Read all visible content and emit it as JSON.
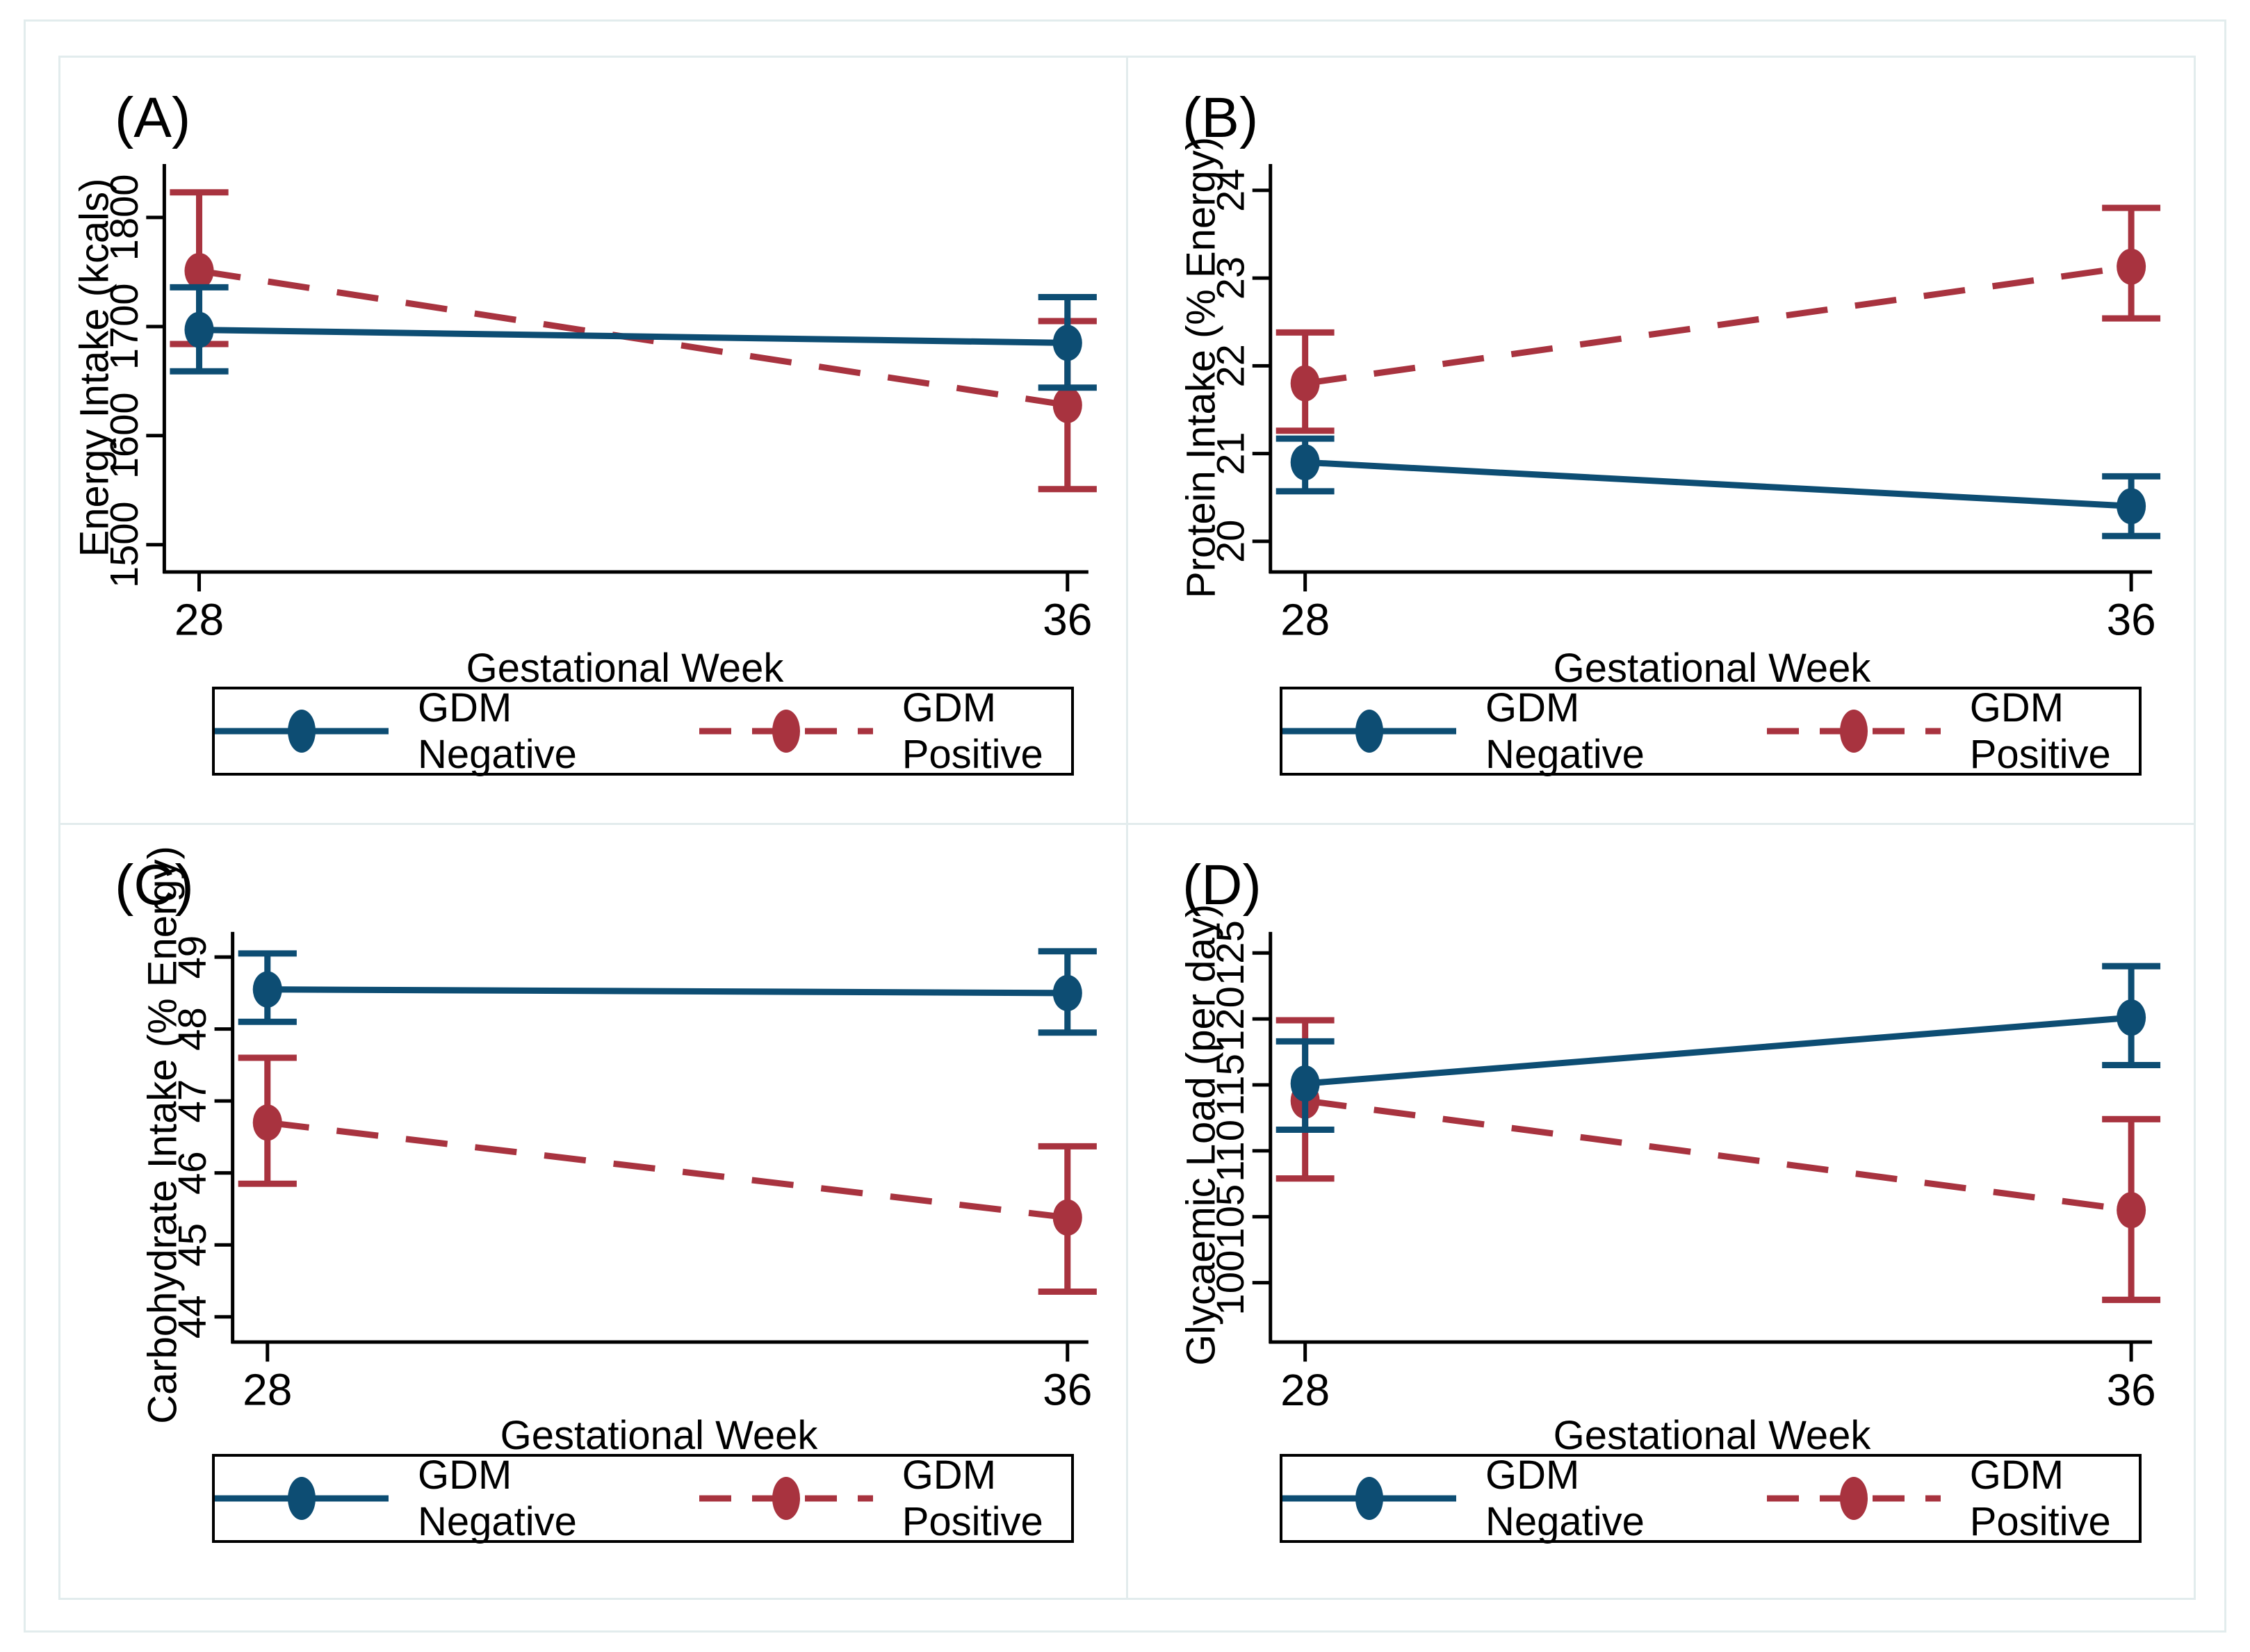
{
  "figure": {
    "frame_color": "#e2eced",
    "axis_color": "#000000",
    "background": "#ffffff"
  },
  "colors": {
    "negative": "#0d4d73",
    "positive": "#a8333f"
  },
  "legend": {
    "negative_label": "GDM Negative",
    "positive_label": "GDM Positive"
  },
  "chart_data": [
    {
      "type": "line",
      "panel": "(A)",
      "ylabel": "Energy Intake (kcals)",
      "xlabel": "Gestational Week",
      "x": [
        28,
        36
      ],
      "yticks": [
        1500,
        1600,
        1700,
        1800
      ],
      "ylim": [
        1475,
        1849
      ],
      "grid": false,
      "legend_position": "below",
      "series": [
        {
          "name": "GDM Negative",
          "key": "negative",
          "style": "solid",
          "values": [
            1697,
            1685
          ],
          "ci_low": [
            1659,
            1644
          ],
          "ci_high": [
            1736,
            1727
          ]
        },
        {
          "name": "GDM Positive",
          "key": "positive",
          "style": "dashed",
          "values": [
            1751,
            1628
          ],
          "ci_low": [
            1684,
            1551
          ],
          "ci_high": [
            1823,
            1705
          ]
        }
      ]
    },
    {
      "type": "line",
      "panel": "(B)",
      "ylabel": "Protein Intake (% Energy)",
      "xlabel": "Gestational Week",
      "x": [
        28,
        36
      ],
      "yticks": [
        20,
        21,
        22,
        23,
        24
      ],
      "ylim": [
        19.65,
        24.3
      ],
      "grid": false,
      "legend_position": "below",
      "series": [
        {
          "name": "GDM Negative",
          "key": "negative",
          "style": "solid",
          "values": [
            20.9,
            20.4
          ],
          "ci_low": [
            20.57,
            20.06
          ],
          "ci_high": [
            21.17,
            20.74
          ]
        },
        {
          "name": "GDM Positive",
          "key": "positive",
          "style": "dashed",
          "values": [
            21.8,
            23.13
          ],
          "ci_low": [
            21.26,
            22.54
          ],
          "ci_high": [
            22.38,
            23.8
          ]
        }
      ]
    },
    {
      "type": "line",
      "panel": "(C)",
      "ylabel": "Carbohydrate Intake (% Energy)",
      "xlabel": "Gestational Week",
      "x": [
        28,
        36
      ],
      "yticks": [
        44,
        45,
        46,
        47,
        48,
        49
      ],
      "ylim": [
        43.65,
        49.35
      ],
      "grid": false,
      "legend_position": "below",
      "series": [
        {
          "name": "GDM Negative",
          "key": "negative",
          "style": "solid",
          "values": [
            48.55,
            48.5
          ],
          "ci_low": [
            48.1,
            47.95
          ],
          "ci_high": [
            49.05,
            49.08
          ]
        },
        {
          "name": "GDM Positive",
          "key": "positive",
          "style": "dashed",
          "values": [
            46.7,
            45.38
          ],
          "ci_low": [
            45.85,
            44.35
          ],
          "ci_high": [
            47.6,
            46.37
          ]
        }
      ]
    },
    {
      "type": "line",
      "panel": "(D)",
      "ylabel": "Glycaemic Load (per day)",
      "xlabel": "Gestational Week",
      "x": [
        28,
        36
      ],
      "yticks": [
        100,
        105,
        110,
        115,
        120,
        125
      ],
      "ylim": [
        95.5,
        126.6
      ],
      "grid": false,
      "legend_position": "below",
      "series": [
        {
          "name": "GDM Negative",
          "key": "negative",
          "style": "solid",
          "values": [
            115.1,
            120.1
          ],
          "ci_low": [
            111.6,
            116.5
          ],
          "ci_high": [
            118.3,
            124.0
          ]
        },
        {
          "name": "GDM Positive",
          "key": "positive",
          "style": "dashed",
          "values": [
            113.8,
            105.5
          ],
          "ci_low": [
            107.9,
            98.7
          ],
          "ci_high": [
            119.9,
            112.4
          ]
        }
      ]
    }
  ]
}
